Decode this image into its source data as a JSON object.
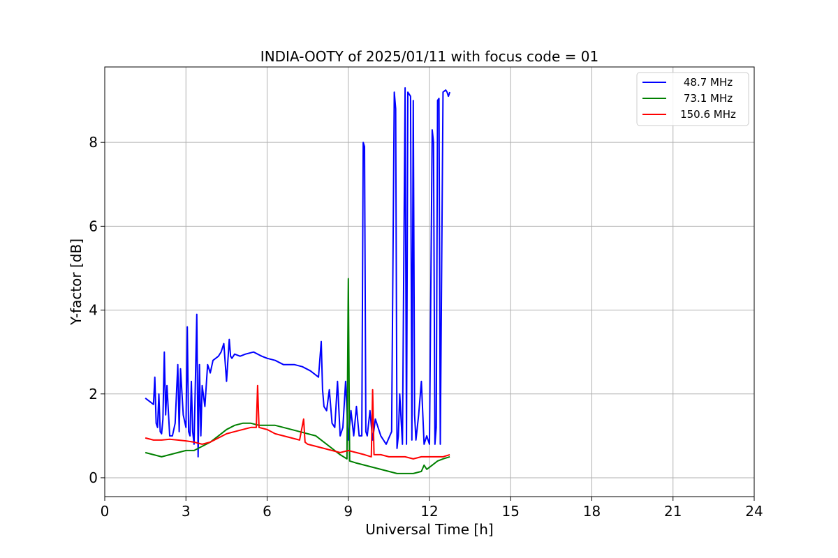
{
  "chart_data": {
    "type": "line",
    "title": "INDIA-OOTY of 2025/01/11 with focus code = 01",
    "xlabel": "Universal Time [h]",
    "ylabel": "Y-factor [dB]",
    "xlim": [
      0,
      24
    ],
    "ylim": [
      -0.45,
      9.8
    ],
    "xticks": [
      0,
      3,
      6,
      9,
      12,
      15,
      18,
      21,
      24
    ],
    "xtick_labels": [
      "0",
      "3",
      "6",
      "9",
      "12",
      "15",
      "18",
      "21",
      "24"
    ],
    "yticks": [
      0,
      2,
      4,
      6,
      8
    ],
    "ytick_labels": [
      "0",
      "2",
      "4",
      "6",
      "8"
    ],
    "grid": true,
    "legend_position": "top-right",
    "series": [
      {
        "name": "48.7 MHz",
        "color": "#0000ff",
        "x": [
          1.5,
          1.6,
          1.7,
          1.8,
          1.85,
          1.9,
          1.95,
          2.0,
          2.05,
          2.1,
          2.15,
          2.2,
          2.25,
          2.3,
          2.4,
          2.5,
          2.6,
          2.7,
          2.75,
          2.8,
          2.9,
          3.0,
          3.05,
          3.1,
          3.15,
          3.2,
          3.25,
          3.3,
          3.4,
          3.45,
          3.5,
          3.55,
          3.6,
          3.7,
          3.8,
          3.9,
          4.0,
          4.1,
          4.2,
          4.3,
          4.4,
          4.5,
          4.6,
          4.65,
          4.7,
          4.8,
          5.0,
          5.2,
          5.5,
          5.8,
          6.0,
          6.3,
          6.6,
          7.0,
          7.3,
          7.6,
          7.9,
          8.0,
          8.05,
          8.1,
          8.2,
          8.3,
          8.4,
          8.5,
          8.6,
          8.7,
          8.8,
          8.9,
          9.0,
          9.1,
          9.2,
          9.3,
          9.4,
          9.5,
          9.55,
          9.6,
          9.65,
          9.7,
          9.8,
          9.9,
          10.0,
          10.2,
          10.4,
          10.6,
          10.7,
          10.75,
          10.8,
          10.85,
          10.9,
          11.0,
          11.1,
          11.15,
          11.2,
          11.3,
          11.35,
          11.4,
          11.45,
          11.5,
          11.6,
          11.7,
          11.8,
          11.9,
          12.0,
          12.1,
          12.15,
          12.2,
          12.25,
          12.3,
          12.35,
          12.4,
          12.5,
          12.6,
          12.65,
          12.7,
          12.75
        ],
        "values": [
          1.9,
          1.85,
          1.8,
          1.75,
          2.4,
          1.3,
          1.2,
          2.0,
          1.1,
          1.05,
          1.4,
          3.0,
          1.5,
          2.2,
          1.0,
          1.0,
          1.3,
          2.7,
          1.1,
          2.6,
          1.5,
          1.2,
          3.6,
          1.1,
          1.0,
          2.3,
          1.1,
          0.8,
          3.9,
          0.5,
          2.7,
          1.0,
          2.2,
          1.7,
          2.7,
          2.5,
          2.8,
          2.85,
          2.9,
          3.0,
          3.2,
          2.3,
          3.3,
          2.9,
          2.85,
          2.95,
          2.9,
          2.95,
          3.0,
          2.9,
          2.85,
          2.8,
          2.7,
          2.7,
          2.65,
          2.55,
          2.4,
          3.25,
          2.1,
          1.7,
          1.6,
          2.1,
          1.3,
          1.2,
          2.3,
          1.0,
          1.2,
          2.3,
          0.9,
          1.6,
          1.0,
          1.7,
          1.0,
          1.0,
          8.0,
          7.9,
          1.1,
          1.0,
          1.6,
          0.9,
          1.4,
          1.0,
          0.8,
          1.1,
          9.2,
          8.8,
          0.7,
          1.0,
          2.0,
          0.8,
          9.3,
          0.8,
          9.2,
          9.1,
          0.9,
          9.0,
          1.5,
          0.9,
          1.5,
          2.3,
          0.8,
          1.0,
          0.8,
          8.3,
          8.0,
          0.8,
          1.2,
          9.0,
          9.05,
          0.8,
          9.2,
          9.25,
          9.2,
          9.1,
          9.2
        ]
      },
      {
        "name": "73.1 MHz",
        "color": "#008000",
        "x": [
          1.5,
          1.8,
          2.1,
          2.4,
          2.7,
          3.0,
          3.3,
          3.6,
          3.9,
          4.2,
          4.5,
          4.8,
          5.1,
          5.4,
          5.7,
          6.0,
          6.3,
          6.6,
          6.9,
          7.2,
          7.5,
          7.8,
          8.1,
          8.4,
          8.7,
          8.95,
          9.0,
          9.05,
          9.3,
          9.6,
          9.9,
          10.2,
          10.5,
          10.8,
          11.1,
          11.4,
          11.7,
          11.8,
          11.9,
          12.1,
          12.3,
          12.5,
          12.75
        ],
        "values": [
          0.6,
          0.55,
          0.5,
          0.55,
          0.6,
          0.65,
          0.65,
          0.75,
          0.85,
          1.0,
          1.15,
          1.25,
          1.3,
          1.3,
          1.25,
          1.25,
          1.25,
          1.2,
          1.15,
          1.1,
          1.05,
          1.0,
          0.85,
          0.7,
          0.55,
          0.45,
          4.75,
          0.4,
          0.35,
          0.3,
          0.25,
          0.2,
          0.15,
          0.1,
          0.1,
          0.1,
          0.15,
          0.3,
          0.2,
          0.3,
          0.4,
          0.45,
          0.5
        ]
      },
      {
        "name": "150.6 MHz",
        "color": "#ff0000",
        "x": [
          1.5,
          1.8,
          2.1,
          2.4,
          2.7,
          3.0,
          3.3,
          3.6,
          3.9,
          4.2,
          4.5,
          4.8,
          5.1,
          5.4,
          5.6,
          5.65,
          5.7,
          6.0,
          6.3,
          6.6,
          6.9,
          7.2,
          7.35,
          7.4,
          7.5,
          7.8,
          8.1,
          8.4,
          8.7,
          9.0,
          9.3,
          9.6,
          9.85,
          9.9,
          9.95,
          10.2,
          10.5,
          10.8,
          11.1,
          11.4,
          11.7,
          12.0,
          12.3,
          12.5,
          12.75
        ],
        "values": [
          0.95,
          0.9,
          0.9,
          0.92,
          0.9,
          0.88,
          0.85,
          0.8,
          0.85,
          0.95,
          1.05,
          1.1,
          1.15,
          1.2,
          1.2,
          2.2,
          1.2,
          1.15,
          1.05,
          1.0,
          0.95,
          0.9,
          1.4,
          0.85,
          0.8,
          0.75,
          0.7,
          0.65,
          0.6,
          0.65,
          0.6,
          0.55,
          0.5,
          2.1,
          0.55,
          0.55,
          0.5,
          0.5,
          0.5,
          0.45,
          0.5,
          0.5,
          0.5,
          0.5,
          0.55
        ]
      }
    ]
  }
}
